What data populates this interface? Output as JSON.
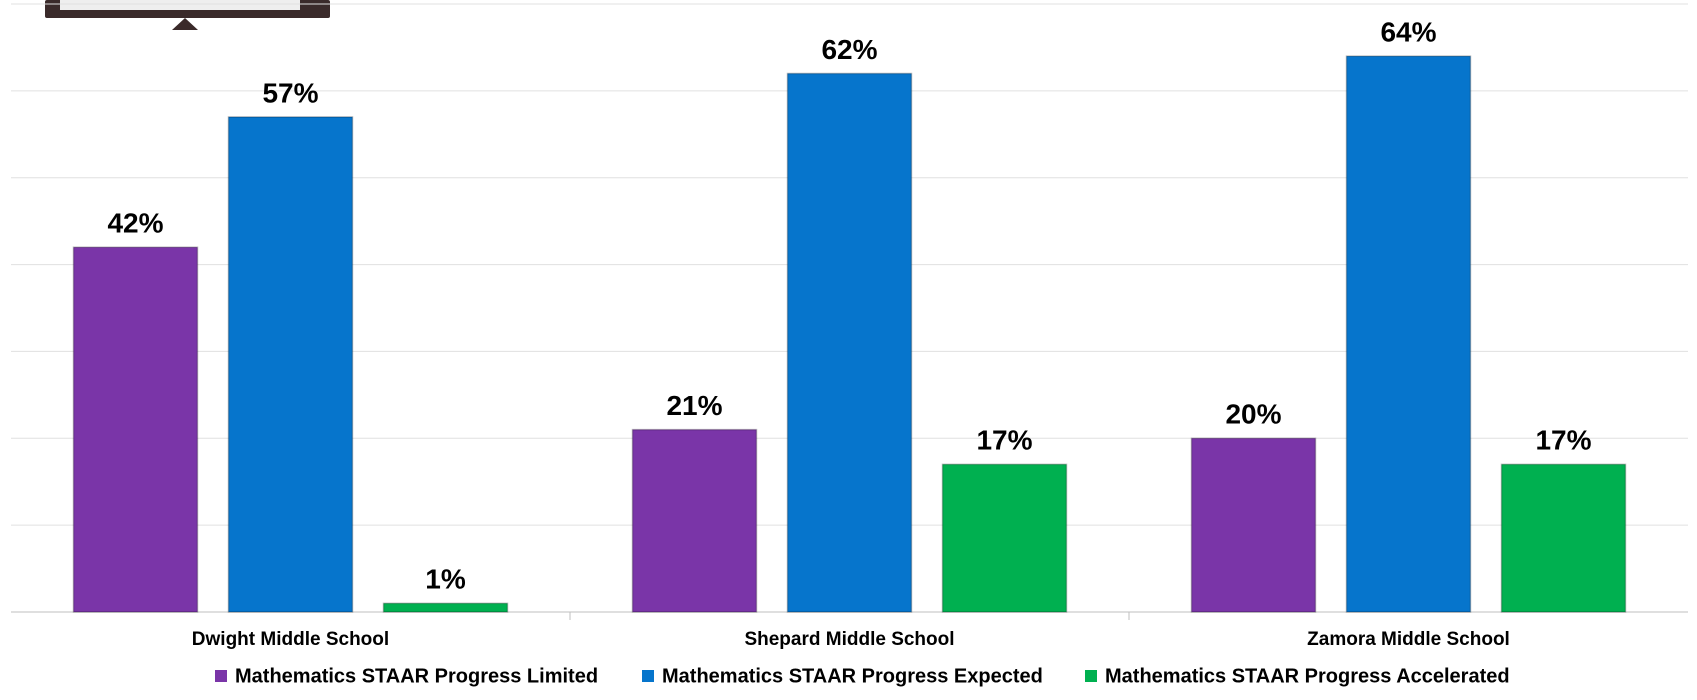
{
  "chart_data": {
    "type": "bar",
    "categories": [
      "Dwight Middle School",
      "Shepard Middle School",
      "Zamora Middle School"
    ],
    "series": [
      {
        "name": "Mathematics STAAR Progress Limited",
        "color": "#7a35a8",
        "values": [
          42,
          21,
          20
        ],
        "value_labels": [
          "42%",
          "21%",
          "20%"
        ]
      },
      {
        "name": "Mathematics STAAR Progress Expected",
        "color": "#0675cc",
        "values": [
          57,
          62,
          64
        ],
        "value_labels": [
          "57%",
          "62%",
          "64%"
        ]
      },
      {
        "name": "Mathematics STAAR Progress Accelerated",
        "color": "#00b050",
        "values": [
          1,
          17,
          17
        ],
        "value_labels": [
          "1%",
          "17%",
          "17%"
        ]
      }
    ],
    "ylim": [
      0,
      70
    ],
    "yticks": [
      0,
      10,
      20,
      30,
      40,
      50,
      60,
      70
    ],
    "grid": true,
    "legend": "bottom"
  }
}
